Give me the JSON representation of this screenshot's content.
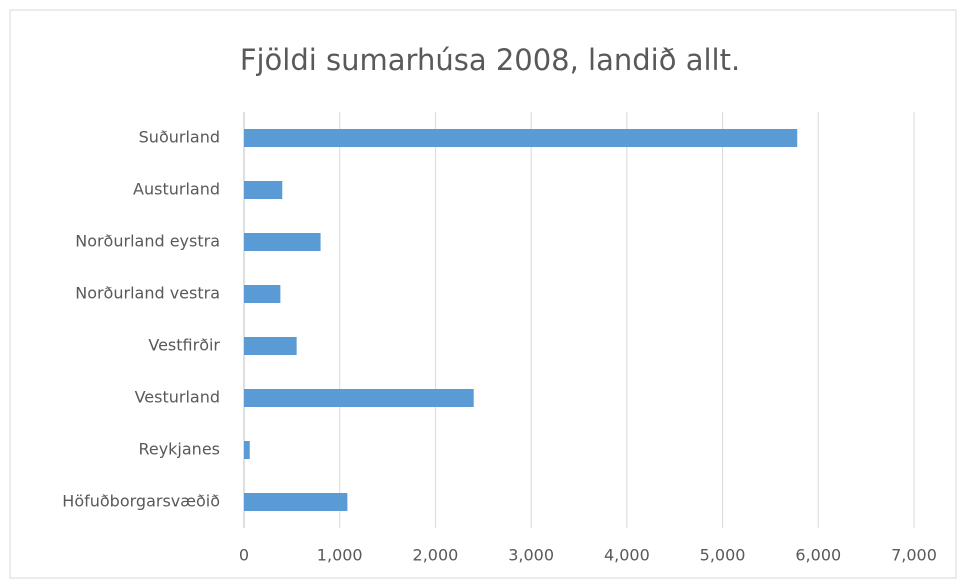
{
  "chart_data": {
    "type": "bar",
    "orientation": "horizontal",
    "title": "Fjöldi sumarhúsa 2008, landið allt.",
    "categories": [
      "Suðurland",
      "Austurland",
      "Norðurland eystra",
      "Norðurland vestra",
      "Vestfirðir",
      "Vesturland",
      "Reykjanes",
      "Höfuðborgarsvæðið"
    ],
    "values": [
      5780,
      400,
      800,
      380,
      550,
      2400,
      60,
      1080
    ],
    "color": "#5b9bd5",
    "xlim": [
      0,
      7000
    ],
    "xticks": [
      0,
      {
        "value": 1000,
        "label": "1,000"
      },
      {
        "value": 2000,
        "label": "2,000"
      },
      {
        "value": 3000,
        "label": "3,000"
      },
      {
        "value": 4000,
        "label": "4,000"
      },
      {
        "value": 5000,
        "label": "5,000"
      },
      {
        "value": 6000,
        "label": "6,000"
      },
      {
        "value": 7000,
        "label": "7,000"
      }
    ],
    "grid": true
  }
}
